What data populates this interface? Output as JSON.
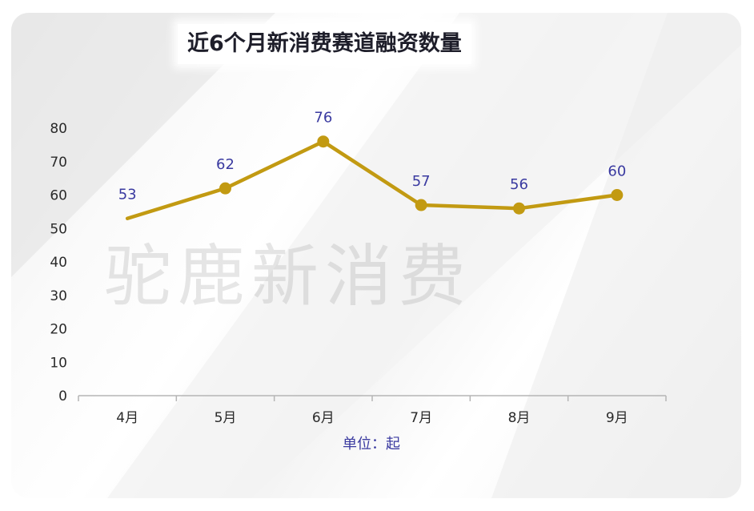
{
  "page": {
    "watermark": "驼鹿新消费"
  },
  "chart_data": {
    "type": "line",
    "title": "近6个月新消费赛道融资数量",
    "unit_label": "单位：起",
    "categories": [
      "4月",
      "5月",
      "6月",
      "7月",
      "8月",
      "9月"
    ],
    "values": [
      53,
      62,
      76,
      57,
      56,
      60
    ],
    "y_ticks": [
      0,
      10,
      20,
      30,
      40,
      50,
      60,
      70,
      80
    ],
    "ylim": [
      0,
      80
    ],
    "grid": false,
    "legend": "none",
    "line_color": "#c29a12",
    "label_color": "#3a3aa0"
  }
}
